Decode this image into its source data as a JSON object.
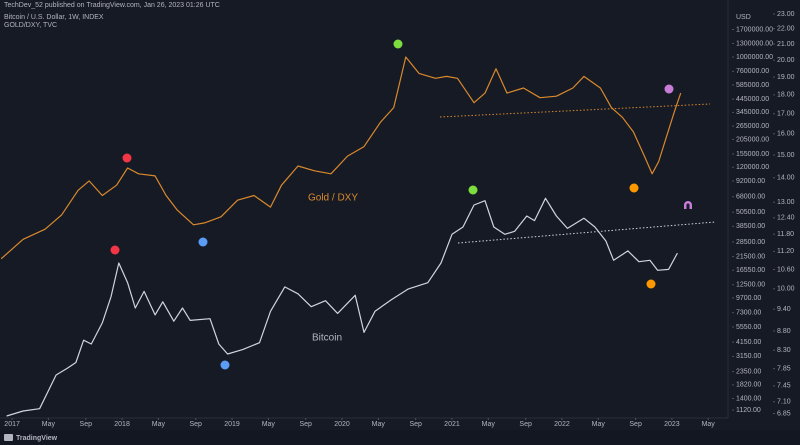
{
  "chart_data": {
    "type": "line",
    "header": "TechDev_52 published on TradingView.com, Jan 26, 2023 01:26 UTC",
    "legend_lines": [
      "Bitcoin / U.S. Dollar, 1W, INDEX",
      "GOLD/DXY, TVC"
    ],
    "ylabel": "USD",
    "footer": "TradingView",
    "annotations": [
      "Gold / DXY",
      "Bitcoin"
    ],
    "log_scale": true,
    "y2_log_scale": true,
    "grid": false,
    "xlim": [
      2016.89,
      2023.51
    ],
    "xticks": [
      2017,
      {
        "value": 2017.33,
        "label": "May"
      },
      {
        "value": 2017.67,
        "label": "Sep"
      },
      2018,
      {
        "value": 2018.33,
        "label": "May"
      },
      {
        "value": 2018.67,
        "label": "Sep"
      },
      2019,
      {
        "value": 2019.33,
        "label": "May"
      },
      {
        "value": 2019.67,
        "label": "Sep"
      },
      2020,
      {
        "value": 2020.33,
        "label": "May"
      },
      {
        "value": 2020.67,
        "label": "Sep"
      },
      2021,
      {
        "value": 2021.33,
        "label": "May"
      },
      {
        "value": 2021.67,
        "label": "Sep"
      },
      2022,
      {
        "value": 2022.33,
        "label": "May"
      },
      {
        "value": 2022.67,
        "label": "Sep"
      },
      2023,
      {
        "value": 2023.33,
        "label": "May"
      }
    ],
    "ylim": [
      1000,
      3000000
    ],
    "yticks": [
      {
        "value": 1700000,
        "label": "1700000.00"
      },
      {
        "value": 1300000,
        "label": "1300000.00"
      },
      {
        "value": 1000000,
        "label": "1000000.00"
      },
      {
        "value": 760000,
        "label": "760000.00"
      },
      {
        "value": 585000,
        "label": "585000.00"
      },
      {
        "value": 445000,
        "label": "445000.00"
      },
      {
        "value": 345000,
        "label": "345000.00"
      },
      {
        "value": 265000,
        "label": "265000.00"
      },
      {
        "value": 205000,
        "label": "205000.00"
      },
      {
        "value": 155000,
        "label": "155000.00"
      },
      {
        "value": 120000,
        "label": "120000.00"
      },
      {
        "value": 92000,
        "label": "92000.00"
      },
      {
        "value": 68000,
        "label": "68000.00"
      },
      {
        "value": 50500,
        "label": "50500.00"
      },
      {
        "value": 38500,
        "label": "38500.00"
      },
      {
        "value": 28500,
        "label": "28500.00"
      },
      {
        "value": 21500,
        "label": "21500.00"
      },
      {
        "value": 16550,
        "label": "16550.00"
      },
      {
        "value": 12500,
        "label": "12500.00"
      },
      {
        "value": 9700,
        "label": "9700.00"
      },
      {
        "value": 7300,
        "label": "7300.00"
      },
      {
        "value": 5550,
        "label": "5550.00"
      },
      {
        "value": 4150,
        "label": "4150.00"
      },
      {
        "value": 3150,
        "label": "3150.00"
      },
      {
        "value": 2350,
        "label": "2350.00"
      },
      {
        "value": 1820,
        "label": "1820.00"
      },
      {
        "value": 1400,
        "label": "1400.00"
      },
      {
        "value": 1120,
        "label": "1120.00"
      }
    ],
    "y2lim": [
      6.8,
      24
    ],
    "y2ticks": [
      {
        "value": 23,
        "label": "23.00"
      },
      {
        "value": 22,
        "label": "22.00"
      },
      {
        "value": 21,
        "label": "21.00"
      },
      {
        "value": 20,
        "label": "20.00"
      },
      {
        "value": 19,
        "label": "19.00"
      },
      {
        "value": 18,
        "label": "18.00"
      },
      {
        "value": 17,
        "label": "17.00"
      },
      {
        "value": 16,
        "label": "16.00"
      },
      {
        "value": 15,
        "label": "15.00"
      },
      {
        "value": 14,
        "label": "14.00"
      },
      {
        "value": 13,
        "label": "13.00"
      },
      {
        "value": 12.4,
        "label": "12.40"
      },
      {
        "value": 11.8,
        "label": "11.80"
      },
      {
        "value": 11.2,
        "label": "11.20"
      },
      {
        "value": 10.6,
        "label": "10.60"
      },
      {
        "value": 10,
        "label": "10.00"
      },
      {
        "value": 9.4,
        "label": "9.40"
      },
      {
        "value": 8.8,
        "label": "8.80"
      },
      {
        "value": 8.3,
        "label": "8.30"
      },
      {
        "value": 7.85,
        "label": "7.85"
      },
      {
        "value": 7.45,
        "label": "7.45"
      },
      {
        "value": 7.1,
        "label": "7.10"
      },
      {
        "value": 6.85,
        "label": "6.85"
      }
    ],
    "series": [
      {
        "name": "Bitcoin / U.S. Dollar",
        "color": "#d1d4dc",
        "x": [
          2016.95,
          2017.1,
          2017.25,
          2017.4,
          2017.5,
          2017.58,
          2017.65,
          2017.72,
          2017.82,
          2017.9,
          2017.97,
          2018.05,
          2018.12,
          2018.2,
          2018.3,
          2018.37,
          2018.47,
          2018.55,
          2018.62,
          2018.8,
          2018.88,
          2018.96,
          2019.1,
          2019.25,
          2019.35,
          2019.48,
          2019.6,
          2019.72,
          2019.85,
          2019.96,
          2020.12,
          2020.2,
          2020.3,
          2020.45,
          2020.6,
          2020.78,
          2020.9,
          2021.0,
          2021.1,
          2021.2,
          2021.3,
          2021.38,
          2021.48,
          2021.57,
          2021.68,
          2021.75,
          2021.85,
          2021.95,
          2022.05,
          2022.2,
          2022.3,
          2022.4,
          2022.47,
          2022.6,
          2022.7,
          2022.8,
          2022.87,
          2022.97,
          2023.05
        ],
        "values": [
          1000,
          1100,
          1150,
          2200,
          2500,
          2800,
          4300,
          4000,
          6000,
          10000,
          19000,
          13000,
          8000,
          11000,
          7000,
          9000,
          6200,
          8000,
          6300,
          6500,
          4000,
          3300,
          3600,
          4100,
          7500,
          12000,
          10500,
          8200,
          9200,
          7200,
          10200,
          5000,
          7500,
          9400,
          11500,
          13000,
          19000,
          33000,
          38000,
          58000,
          63000,
          38000,
          33000,
          35000,
          47000,
          43000,
          66000,
          47000,
          37000,
          45000,
          38000,
          29000,
          20000,
          24000,
          19500,
          20000,
          16500,
          16800,
          23000
        ]
      },
      {
        "name": "GOLD/DXY",
        "color": "#d9892c",
        "axis": "y2",
        "x": [
          2016.9,
          2017.1,
          2017.3,
          2017.45,
          2017.6,
          2017.7,
          2017.82,
          2017.95,
          2018.05,
          2018.15,
          2018.3,
          2018.4,
          2018.5,
          2018.65,
          2018.75,
          2018.9,
          2019.05,
          2019.2,
          2019.35,
          2019.45,
          2019.6,
          2019.75,
          2019.9,
          2020.05,
          2020.2,
          2020.35,
          2020.47,
          2020.58,
          2020.7,
          2020.85,
          2020.95,
          2021.05,
          2021.2,
          2021.3,
          2021.4,
          2021.5,
          2021.65,
          2021.8,
          2021.95,
          2022.1,
          2022.2,
          2022.35,
          2022.45,
          2022.55,
          2022.65,
          2022.75,
          2022.82,
          2022.88,
          2022.95,
          2023.02,
          2023.08
        ],
        "values": [
          10.95,
          11.62,
          11.98,
          12.51,
          13.48,
          13.87,
          13.27,
          13.69,
          14.42,
          14.17,
          14.08,
          13.27,
          12.7,
          12.14,
          12.21,
          12.44,
          13.08,
          13.27,
          12.81,
          13.69,
          14.51,
          14.3,
          14.17,
          14.95,
          15.39,
          16.57,
          17.32,
          20.19,
          19.21,
          18.93,
          19.04,
          18.93,
          17.58,
          18.1,
          19.48,
          18.1,
          18.38,
          17.85,
          17.93,
          18.38,
          19.04,
          18.38,
          17.32,
          16.82,
          16.09,
          14.95,
          14.17,
          14.71,
          15.85,
          17.06,
          18.1
        ]
      }
    ]
  }
}
